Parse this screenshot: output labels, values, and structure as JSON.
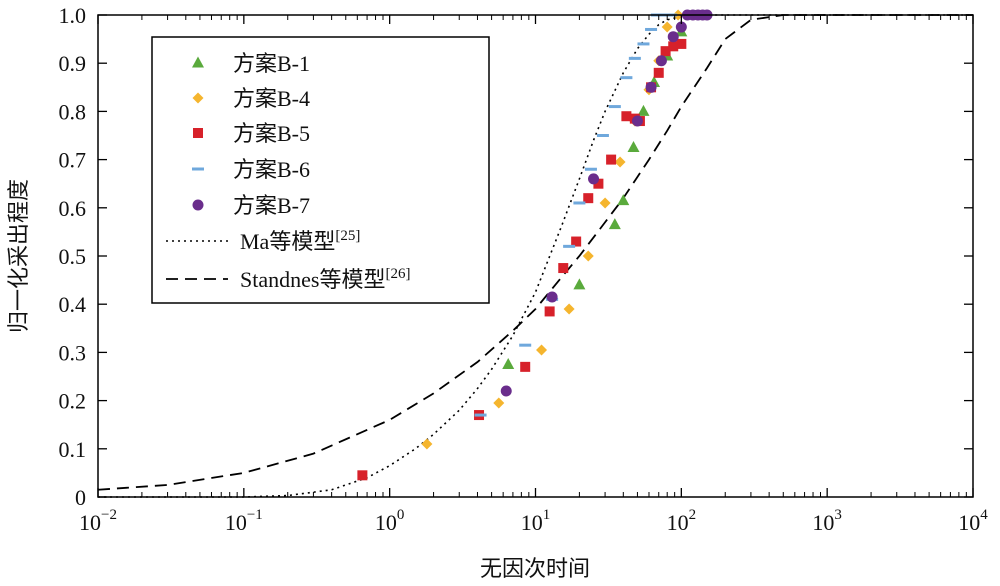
{
  "chart_data": {
    "type": "scatter",
    "xlabel": "无因次时间",
    "ylabel": "归一化采出程度",
    "xscale": "log",
    "xlim": [
      0.01,
      10000
    ],
    "ylim": [
      0,
      1.0
    ],
    "grid": false,
    "legend_position": "top-left",
    "x_ticks": [
      {
        "base": "10",
        "exp": "−2"
      },
      {
        "base": "10",
        "exp": "−1"
      },
      {
        "base": "10",
        "exp": "0"
      },
      {
        "base": "10",
        "exp": "1"
      },
      {
        "base": "10",
        "exp": "2"
      },
      {
        "base": "10",
        "exp": "3"
      },
      {
        "base": "10",
        "exp": "4"
      }
    ],
    "y_ticks": [
      "0",
      "0.1",
      "0.2",
      "0.3",
      "0.4",
      "0.5",
      "0.6",
      "0.7",
      "0.8",
      "0.9",
      "1.0"
    ],
    "series": [
      {
        "name": "方案B-1",
        "marker": "triangle",
        "color": "#5aaa3c",
        "x": [
          6.5,
          20,
          35,
          40,
          47,
          55,
          65,
          80,
          100
        ],
        "y": [
          0.275,
          0.44,
          0.565,
          0.615,
          0.725,
          0.8,
          0.86,
          0.915,
          0.965
        ]
      },
      {
        "name": "方案B-4",
        "marker": "diamond",
        "color": "#f5b52e",
        "x": [
          1.8,
          5.6,
          11,
          17,
          23,
          30,
          38,
          48,
          60,
          70,
          80,
          95
        ],
        "y": [
          0.11,
          0.195,
          0.305,
          0.39,
          0.5,
          0.61,
          0.695,
          0.78,
          0.845,
          0.905,
          0.975,
          1.0
        ]
      },
      {
        "name": "方案B-5",
        "marker": "square",
        "color": "#d7212a",
        "x": [
          0.65,
          4.1,
          8.5,
          12.5,
          15.5,
          19,
          23,
          27,
          33,
          42,
          48,
          52,
          62,
          70,
          78,
          88,
          100
        ],
        "y": [
          0.045,
          0.17,
          0.27,
          0.385,
          0.475,
          0.53,
          0.62,
          0.65,
          0.7,
          0.79,
          0.785,
          0.78,
          0.85,
          0.88,
          0.925,
          0.935,
          0.94
        ]
      },
      {
        "name": "方案B-6",
        "marker": "dash",
        "color": "#6fa8dc",
        "x": [
          4.2,
          8.5,
          13,
          17,
          20,
          24,
          29,
          35,
          42,
          48,
          55,
          62,
          68,
          75,
          85
        ],
        "y": [
          0.17,
          0.315,
          0.41,
          0.52,
          0.61,
          0.68,
          0.75,
          0.81,
          0.87,
          0.91,
          0.94,
          0.97,
          1.0,
          1.0,
          1.0
        ]
      },
      {
        "name": "方案B-7",
        "marker": "circle",
        "color": "#6a2d8c",
        "x": [
          6.3,
          13,
          25,
          50,
          62,
          73,
          88,
          100,
          110,
          120,
          130,
          140,
          150
        ],
        "y": [
          0.22,
          0.415,
          0.66,
          0.78,
          0.85,
          0.905,
          0.955,
          0.975,
          1.0,
          1.0,
          1.0,
          1.0,
          1.0
        ]
      }
    ],
    "reference_curves": [
      {
        "name": "Ma等模型",
        "citation": "[25]",
        "style": "dotted",
        "x": [
          0.01,
          0.05,
          0.1,
          0.2,
          0.4,
          0.7,
          1,
          1.5,
          2,
          3,
          4,
          5,
          7,
          10,
          15,
          20,
          25,
          30,
          40,
          50,
          60,
          70,
          80,
          100,
          130,
          200,
          500,
          10000
        ],
        "y": [
          0.0,
          0.0,
          0.0,
          0.003,
          0.015,
          0.04,
          0.065,
          0.1,
          0.13,
          0.18,
          0.225,
          0.265,
          0.335,
          0.425,
          0.56,
          0.66,
          0.74,
          0.8,
          0.88,
          0.93,
          0.96,
          0.98,
          0.99,
          0.997,
          1.0,
          1.0,
          1.0,
          1.0
        ]
      },
      {
        "name": "Standnes等模型",
        "citation": "[26]",
        "style": "dashed",
        "x": [
          0.01,
          0.03,
          0.1,
          0.3,
          1,
          2,
          4,
          7,
          10,
          15,
          20,
          30,
          40,
          60,
          80,
          100,
          150,
          200,
          300,
          500,
          1000,
          10000
        ],
        "y": [
          0.015,
          0.025,
          0.05,
          0.09,
          0.16,
          0.215,
          0.28,
          0.345,
          0.39,
          0.455,
          0.5,
          0.57,
          0.62,
          0.7,
          0.76,
          0.81,
          0.89,
          0.95,
          0.99,
          1.0,
          1.0,
          1.0
        ]
      }
    ]
  }
}
